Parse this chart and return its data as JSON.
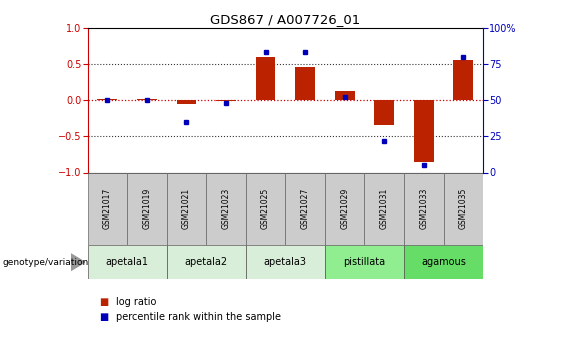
{
  "title": "GDS867 / A007726_01",
  "samples": [
    "GSM21017",
    "GSM21019",
    "GSM21021",
    "GSM21023",
    "GSM21025",
    "GSM21027",
    "GSM21029",
    "GSM21031",
    "GSM21033",
    "GSM21035"
  ],
  "log_ratio": [
    0.02,
    0.02,
    -0.05,
    -0.02,
    0.6,
    0.45,
    0.12,
    -0.35,
    -0.85,
    0.55
  ],
  "percentile": [
    50,
    50,
    35,
    48,
    83,
    83,
    52,
    22,
    5,
    80
  ],
  "groups": [
    {
      "name": "apetala1",
      "start": 0,
      "end": 1
    },
    {
      "name": "apetala2",
      "start": 2,
      "end": 3
    },
    {
      "name": "apetala3",
      "start": 4,
      "end": 5
    },
    {
      "name": "pistillata",
      "start": 6,
      "end": 7
    },
    {
      "name": "agamous",
      "start": 8,
      "end": 9
    }
  ],
  "group_colors": [
    "#d8eed8",
    "#d8eed8",
    "#d8eed8",
    "#90ee90",
    "#66dd66"
  ],
  "ylim_left": [
    -1,
    1
  ],
  "ylim_right": [
    0,
    100
  ],
  "yticks_left": [
    -1,
    -0.5,
    0,
    0.5,
    1
  ],
  "yticks_right": [
    0,
    25,
    50,
    75,
    100
  ],
  "bar_color": "#bb2200",
  "dot_color": "#0000bb",
  "zero_line_color": "#cc0000",
  "dotted_line_color": "#333333",
  "sample_box_color": "#cccccc",
  "background": "#ffffff"
}
